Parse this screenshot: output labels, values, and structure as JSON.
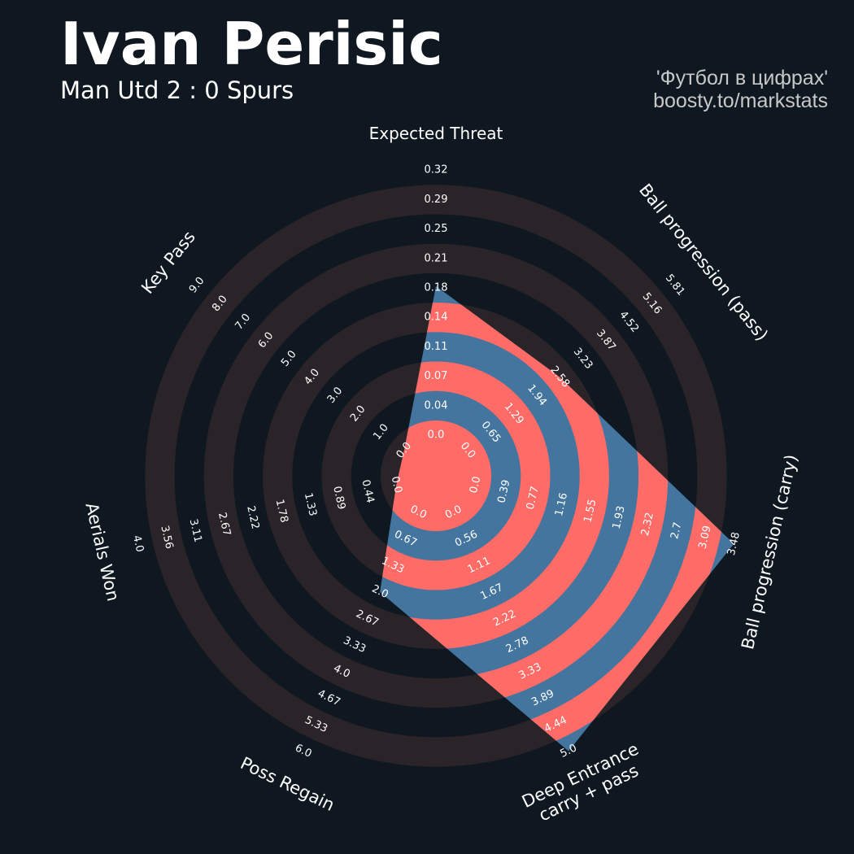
{
  "header": {
    "title": "Ivan Perisic",
    "subtitle": "Man Utd 2 : 0 Spurs",
    "credit_line1": "'Футбол в цифрах'",
    "credit_line2": "boosty.to/markstats"
  },
  "colors": {
    "background": "#0f1820",
    "ring_band": "#2a2428",
    "polygon_blue": "#44759e",
    "polygon_red": "#ff6b67",
    "text": "#ffffff",
    "credit_text": "#c8c8c8"
  },
  "chart_data": {
    "type": "radar",
    "title": "Ivan Perisic",
    "subtitle": "Man Utd 2 : 0 Spurs",
    "grid": true,
    "axes": [
      {
        "label": "Expected Threat",
        "min": 0.0,
        "max": 0.32,
        "ticks": [
          "0.0",
          "0.04",
          "0.07",
          "0.11",
          "0.14",
          "0.18",
          "0.21",
          "0.25",
          "0.29",
          "0.32"
        ]
      },
      {
        "label": "Ball progression (pass)",
        "min": 0.0,
        "max": 5.81,
        "ticks": [
          "0.0",
          "0.65",
          "1.29",
          "1.94",
          "2.58",
          "3.23",
          "3.87",
          "4.52",
          "5.16",
          "5.81"
        ]
      },
      {
        "label": "Ball progression (carry)",
        "min": 0.0,
        "max": 3.48,
        "ticks": [
          "0.0",
          "0.39",
          "0.77",
          "1.16",
          "1.55",
          "1.93",
          "2.32",
          "2.7",
          "3.09",
          "3.48"
        ]
      },
      {
        "label": "Deep Entrance\ncarry + pass",
        "min": 0.0,
        "max": 5.0,
        "ticks": [
          "0.0",
          "0.56",
          "1.11",
          "1.67",
          "2.22",
          "2.78",
          "3.33",
          "3.89",
          "4.44",
          "5.0"
        ]
      },
      {
        "label": "Poss Regain",
        "min": 0.0,
        "max": 6.0,
        "ticks": [
          "0.0",
          "0.67",
          "1.33",
          "2.0",
          "2.67",
          "3.33",
          "4.0",
          "4.67",
          "5.33",
          "6.0"
        ]
      },
      {
        "label": "Aerials Won",
        "min": 0.0,
        "max": 4.0,
        "ticks": [
          "0.0",
          "0.44",
          "0.89",
          "1.33",
          "1.78",
          "2.22",
          "2.67",
          "3.11",
          "3.56",
          "4.0"
        ]
      },
      {
        "label": "Key Pass",
        "min": 0.0,
        "max": 9.0,
        "ticks": [
          "0.0",
          "1.0",
          "2.0",
          "3.0",
          "4.0",
          "5.0",
          "6.0",
          "7.0",
          "8.0",
          "9.0"
        ]
      }
    ],
    "series": [
      {
        "values": [
          0.18,
          2.58,
          3.48,
          5.0,
          2.0,
          0.0,
          0.0
        ]
      }
    ]
  }
}
